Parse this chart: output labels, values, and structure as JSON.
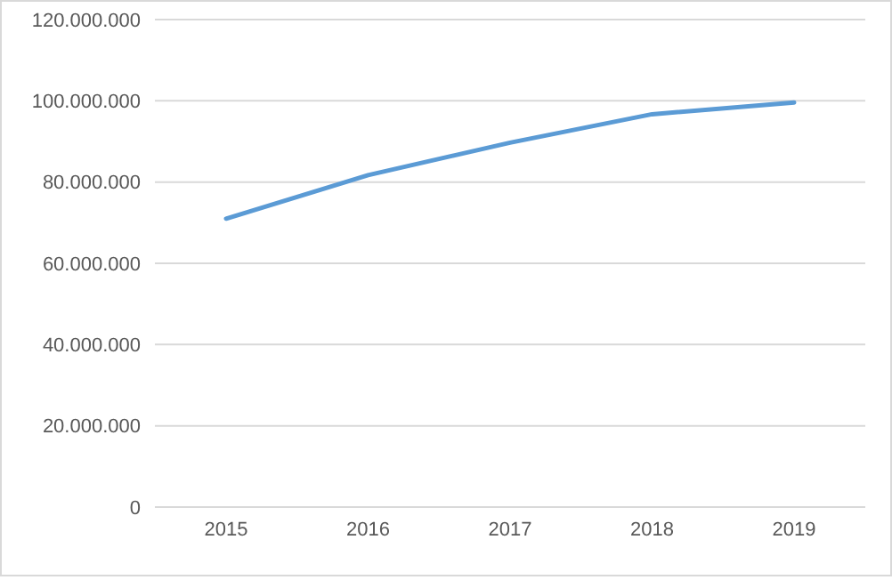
{
  "chart_data": {
    "type": "line",
    "categories": [
      "2015",
      "2016",
      "2017",
      "2018",
      "2019"
    ],
    "series": [
      {
        "color": "#5b9bd5",
        "values": [
          71000000,
          81700000,
          89700000,
          96700000,
          99600000
        ]
      }
    ],
    "ylim": [
      0,
      120000000
    ],
    "yticks": [
      0,
      {
        "value": 20000000,
        "label": "20.000.000"
      },
      {
        "value": 40000000,
        "label": "40.000.000"
      },
      {
        "value": 60000000,
        "label": "60.000.000"
      },
      {
        "value": 80000000,
        "label": "80.000.000"
      },
      {
        "value": 100000000,
        "label": "100.000.000"
      },
      {
        "value": 120000000,
        "label": "120.000.000"
      }
    ],
    "grid": "y",
    "marker": "none",
    "line_style": "solid",
    "legend": false
  }
}
